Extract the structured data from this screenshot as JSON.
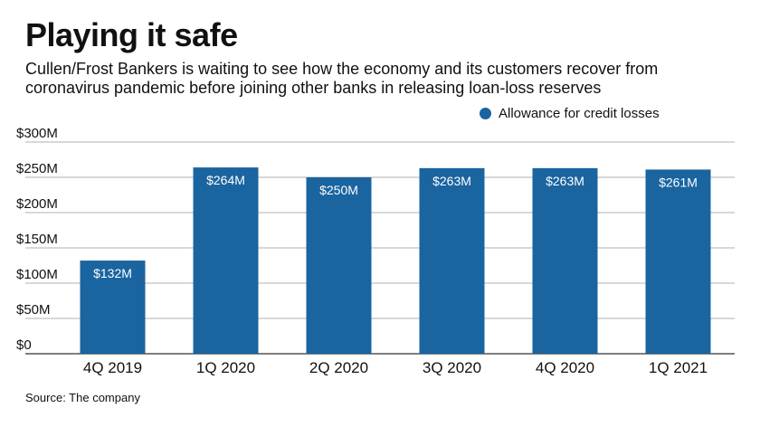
{
  "colors": {
    "bar": "#1a64a0",
    "grid": "#999999",
    "text": "#111111"
  },
  "chart_data": {
    "type": "bar",
    "title": "Playing it safe",
    "subtitle": "Cullen/Frost Bankers is waiting to see how the economy and its customers recover from coronavirus pandemic before joining other banks in releasing loan-loss reserves",
    "categories": [
      "4Q 2019",
      "1Q 2020",
      "2Q 2020",
      "3Q 2020",
      "4Q 2020",
      "1Q 2021"
    ],
    "series": [
      {
        "name": "Allowance for credit losses",
        "values": [
          132,
          264,
          250,
          263,
          263,
          261
        ],
        "labels": [
          "$132M",
          "$264M",
          "$250M",
          "$263M",
          "$263M",
          "$261M"
        ]
      }
    ],
    "ylim": [
      0,
      300
    ],
    "yticks": [
      0,
      50,
      100,
      150,
      200,
      250,
      300
    ],
    "ytick_labels": [
      "$0",
      "$50M",
      "$100M",
      "$150M",
      "$200M",
      "$250M",
      "$300M"
    ],
    "xlabel": "",
    "ylabel": "",
    "grid": true,
    "legend_position": "top-right",
    "source": "Source: The company"
  }
}
